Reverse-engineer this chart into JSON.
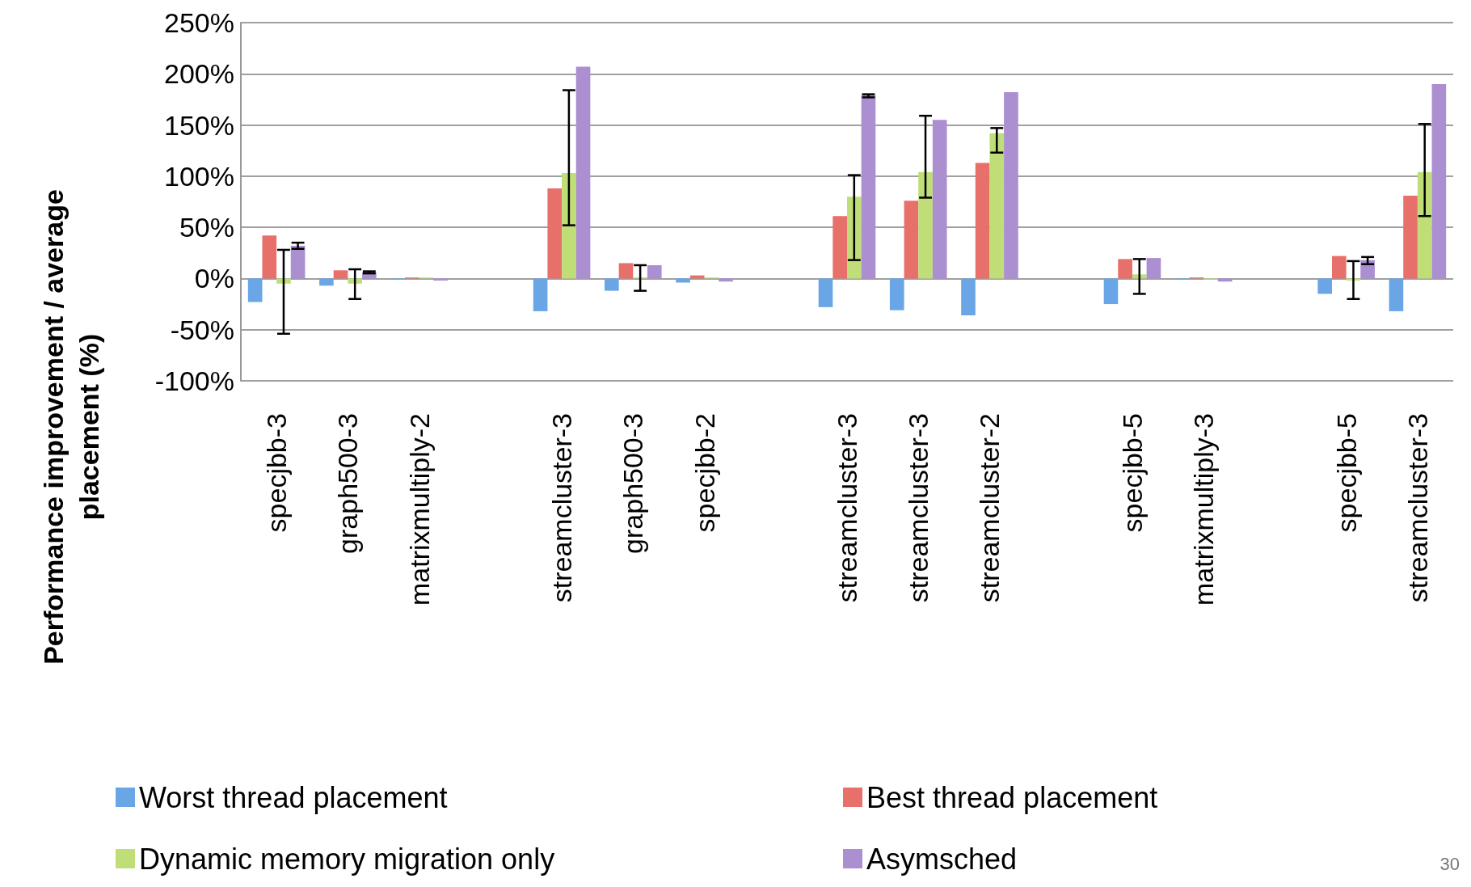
{
  "chart_data": {
    "type": "bar",
    "ylabel": "Performance improvement / average\nplacement (%)",
    "categories": [
      "specjbb-3",
      "graph500-3",
      "matrixmultiply-2",
      null,
      "streamcluster-3",
      "graph500-3",
      "specjbb-2",
      null,
      "streamcluster-3",
      "streamcluster-3",
      "streamcluster-2",
      null,
      "specjbb-5",
      "matrixmultiply-3",
      null,
      "specjbb-5",
      "streamcluster-3"
    ],
    "series": [
      {
        "name": "Worst thread placement",
        "color": "#6aa6e6",
        "values": [
          -23,
          -7,
          -1,
          null,
          -32,
          -12,
          -4,
          null,
          -28,
          -31,
          -36,
          null,
          -25,
          -1,
          null,
          -15,
          -32
        ]
      },
      {
        "name": "Best thread placement",
        "color": "#e8706a",
        "values": [
          42,
          8,
          1,
          null,
          88,
          15,
          3,
          null,
          61,
          76,
          113,
          null,
          19,
          1,
          null,
          22,
          81
        ]
      },
      {
        "name": "Dynamic memory migration only",
        "color": "#c0de78",
        "values": [
          -5,
          -5,
          1,
          null,
          103,
          1,
          1,
          null,
          80,
          104,
          142,
          null,
          4,
          -1,
          null,
          -2,
          104
        ],
        "errors": [
          [
            -54,
            28
          ],
          [
            -20,
            9
          ],
          null,
          null,
          [
            52,
            184
          ],
          [
            -12,
            13
          ],
          null,
          null,
          [
            18,
            101
          ],
          [
            79,
            159
          ],
          [
            123,
            147
          ],
          null,
          [
            -15,
            19
          ],
          null,
          null,
          [
            -20,
            17
          ],
          [
            61,
            151
          ]
        ]
      },
      {
        "name": "Asymsched",
        "color": "#ab8fd0",
        "values": [
          32,
          6,
          -2,
          null,
          207,
          13,
          -3,
          null,
          179,
          155,
          182,
          null,
          20,
          -3,
          null,
          18,
          190
        ],
        "errors": [
          [
            29,
            35
          ],
          [
            5,
            7
          ],
          null,
          null,
          null,
          null,
          null,
          null,
          [
            177,
            180
          ],
          null,
          null,
          null,
          null,
          null,
          null,
          [
            14,
            21
          ],
          null
        ]
      }
    ],
    "ylim": [
      -100,
      250
    ],
    "yticks": [
      {
        "value": -100,
        "label": "-100%"
      },
      {
        "value": -50,
        "label": "-50%"
      },
      {
        "value": 0,
        "label": "0%"
      },
      {
        "value": 50,
        "label": "50%"
      },
      {
        "value": 100,
        "label": "100%"
      },
      {
        "value": 150,
        "label": "150%"
      },
      {
        "value": 200,
        "label": "200%"
      },
      {
        "value": 250,
        "label": "250%"
      }
    ],
    "grid": "y",
    "legend": "bottom",
    "annotations": [
      "30"
    ]
  }
}
